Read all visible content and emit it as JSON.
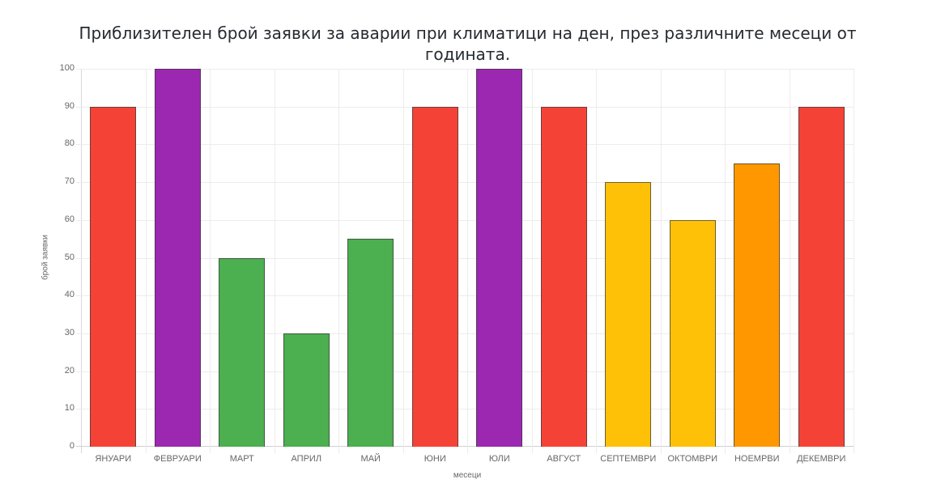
{
  "chart_data": {
    "type": "bar",
    "title": "Приблизителен брой заявки за аварии при климатици на ден, през различните месеци от годината.",
    "title_lines": [
      "Приблизителен брой заявки за аварии при климатици на ден, през различните месеци от",
      "годината."
    ],
    "xlabel": "месеци",
    "ylabel": "брой заявки",
    "ylim": [
      0,
      100
    ],
    "yticks": [
      0,
      10,
      20,
      30,
      40,
      50,
      60,
      70,
      80,
      90,
      100
    ],
    "grid": true,
    "legend": null,
    "categories": [
      "ЯНУАРИ",
      "ФЕВРУАРИ",
      "МАРТ",
      "АПРИЛ",
      "МАЙ",
      "ЮНИ",
      "ЮЛИ",
      "АВГУСТ",
      "СЕПТЕМВРИ",
      "ОКТОМВРИ",
      "НОЕМРВИ",
      "ДЕКЕМВРИ"
    ],
    "values": [
      90,
      100,
      50,
      30,
      55,
      90,
      100,
      90,
      70,
      60,
      75,
      90
    ],
    "colors": [
      "#f44336",
      "#9c27b0",
      "#4caf50",
      "#4caf50",
      "#4caf50",
      "#f44336",
      "#9c27b0",
      "#f44336",
      "#ffc107",
      "#ffc107",
      "#ff9800",
      "#f44336"
    ]
  }
}
